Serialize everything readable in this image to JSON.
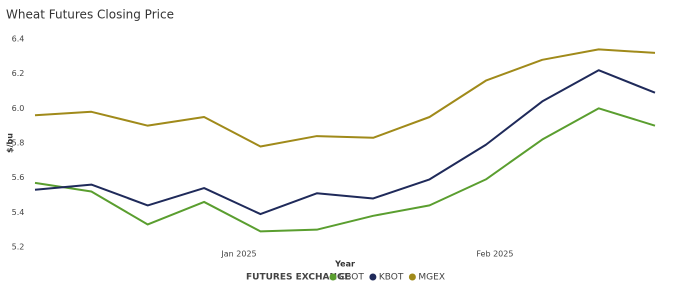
{
  "chart_data": {
    "type": "line",
    "title": "Wheat Futures Closing Price",
    "x_label": "Year",
    "y_label": "$/bu",
    "legend_title": "FUTURES EXCHANGE",
    "x": [
      0,
      1,
      2,
      3,
      4,
      5,
      6,
      7,
      8,
      9,
      10,
      11
    ],
    "xlim": [
      0,
      11
    ],
    "xticks": [
      {
        "value": 3.62,
        "label": "Jan 2025"
      },
      {
        "value": 8.16,
        "label": "Feb 2025"
      }
    ],
    "ylim": [
      5.2,
      6.4
    ],
    "yticks": [
      5.2,
      5.4,
      5.6,
      5.8,
      {
        "value": 6,
        "label": "6.0"
      },
      6.2,
      6.4
    ],
    "series": [
      {
        "name": "CBOT",
        "color": "#5a9e2f",
        "values": [
          5.57,
          5.52,
          5.33,
          5.46,
          5.29,
          5.3,
          5.38,
          5.44,
          5.59,
          5.82,
          6.0,
          5.9
        ]
      },
      {
        "name": "KBOT",
        "color": "#1f2a5a",
        "values": [
          5.53,
          5.56,
          5.44,
          5.54,
          5.39,
          5.51,
          5.48,
          5.59,
          5.79,
          6.04,
          6.22,
          6.09
        ]
      },
      {
        "name": "MGEX",
        "color": "#a08a1a",
        "values": [
          5.96,
          5.98,
          5.9,
          5.95,
          5.78,
          5.84,
          5.83,
          5.95,
          6.16,
          6.28,
          6.34,
          6.32
        ]
      }
    ]
  }
}
